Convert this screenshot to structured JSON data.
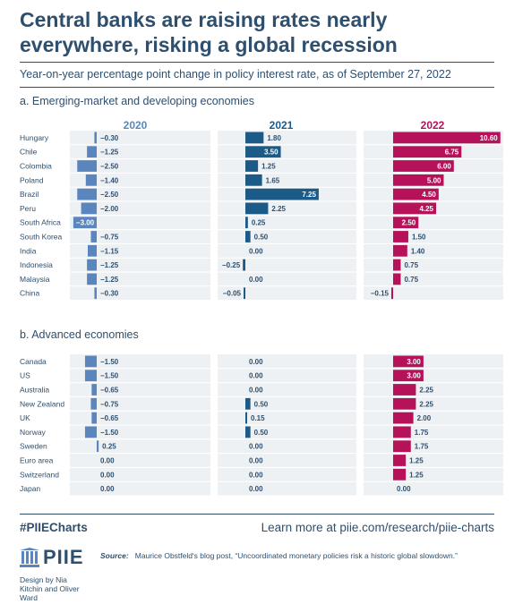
{
  "header": {
    "title": "Central banks are raising rates nearly everywhere, risking a global recession",
    "subtitle": "Year-on-year percentage point change in policy interest rate, as of September 27, 2022"
  },
  "sections": {
    "a": "a. Emerging-market and developing economies",
    "b": "b. Advanced economies"
  },
  "columns": [
    "2020",
    "2021",
    "2022"
  ],
  "colors": {
    "2020": "#5b86bd",
    "2021": "#1c5a87",
    "2022": "#b5125a",
    "panel": "#eef1f4",
    "text": "#2e4f6e"
  },
  "chart_data": [
    {
      "type": "bar",
      "orientation": "horizontal",
      "title": "a. Emerging-market and developing economies",
      "categories": [
        "Hungary",
        "Chile",
        "Colombia",
        "Poland",
        "Brazil",
        "Peru",
        "South Africa",
        "South Korea",
        "India",
        "Indonesia",
        "Malaysia",
        "China"
      ],
      "series": [
        {
          "name": "2020",
          "values": [
            -0.3,
            -1.25,
            -2.5,
            -1.4,
            -2.5,
            -2.0,
            -3.0,
            -0.75,
            -1.15,
            -1.25,
            -1.25,
            -0.3
          ],
          "labels": [
            "−0.30",
            "−1.25",
            "−2.50",
            "−1.40",
            "−2.50",
            "−2.00",
            "−3.00",
            "−0.75",
            "−1.15",
            "−1.25",
            "−1.25",
            "−0.30"
          ]
        },
        {
          "name": "2021",
          "values": [
            1.8,
            3.5,
            1.25,
            1.65,
            7.25,
            2.25,
            0.25,
            0.5,
            0.0,
            -0.25,
            0.0,
            -0.05
          ],
          "labels": [
            "1.80",
            "3.50",
            "1.25",
            "1.65",
            "7.25",
            "2.25",
            "0.25",
            "0.50",
            "0.00",
            "−0.25",
            "0.00",
            "−0.05"
          ]
        },
        {
          "name": "2022",
          "values": [
            10.6,
            6.75,
            6.0,
            5.0,
            4.5,
            4.25,
            2.5,
            1.5,
            1.4,
            0.75,
            0.75,
            -0.15
          ],
          "labels": [
            "10.60",
            "6.75",
            "6.00",
            "5.00",
            "4.50",
            "4.25",
            "2.50",
            "1.50",
            "1.40",
            "0.75",
            "0.75",
            "−0.15"
          ]
        }
      ]
    },
    {
      "type": "bar",
      "orientation": "horizontal",
      "title": "b. Advanced economies",
      "categories": [
        "Canada",
        "US",
        "Australia",
        "New Zealand",
        "UK",
        "Norway",
        "Sweden",
        "Euro area",
        "Switzerland",
        "Japan"
      ],
      "series": [
        {
          "name": "2020",
          "values": [
            -1.5,
            -1.5,
            -0.65,
            -0.75,
            -0.65,
            -1.5,
            0.25,
            0.0,
            0.0,
            0.0
          ],
          "labels": [
            "−1.50",
            "−1.50",
            "−0.65",
            "−0.75",
            "−0.65",
            "−1.50",
            "0.25",
            "0.00",
            "0.00",
            "0.00"
          ]
        },
        {
          "name": "2021",
          "values": [
            0.0,
            0.0,
            0.0,
            0.5,
            0.15,
            0.5,
            0.0,
            0.0,
            0.0,
            0.0
          ],
          "labels": [
            "0.00",
            "0.00",
            "0.00",
            "0.50",
            "0.15",
            "0.50",
            "0.00",
            "0.00",
            "0.00",
            "0.00"
          ]
        },
        {
          "name": "2022",
          "values": [
            3.0,
            3.0,
            2.25,
            2.25,
            2.0,
            1.75,
            1.75,
            1.25,
            1.25,
            0.0
          ],
          "labels": [
            "3.00",
            "3.00",
            "2.25",
            "2.25",
            "2.00",
            "1.75",
            "1.75",
            "1.25",
            "1.25",
            "0.00"
          ]
        }
      ]
    }
  ],
  "footer": {
    "hashtag": "#PIIECharts",
    "link": "Learn more at piie.com/research/piie-charts",
    "logo": "PIIE",
    "source_label": "Source:",
    "source_text": "Maurice Obstfeld's blog post, “Uncoordinated monetary policies risk a historic global slowdown.”",
    "credit": "Design by Nia Kitchin and Oliver Ward"
  }
}
